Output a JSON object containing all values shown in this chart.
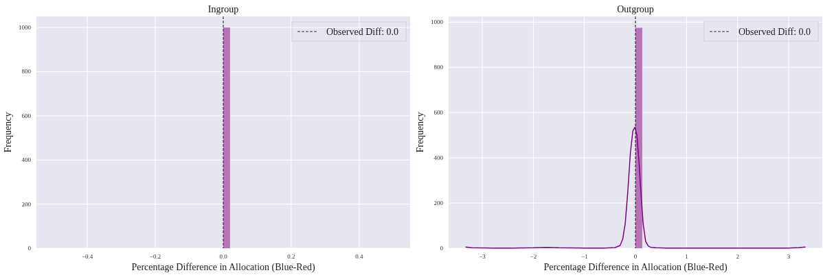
{
  "chart_data": [
    {
      "type": "histogram",
      "title": "Ingroup",
      "xlabel": "Percentage Difference in Allocation (Blue-Red)",
      "ylabel": "Frequency",
      "bins": [
        0,
        0.02
      ],
      "values": [
        1000
      ],
      "color": "#b873b8",
      "xlim": [
        -0.55,
        0.55
      ],
      "xticks": [
        {
          "value": -0.4,
          "label": "−0.4"
        },
        {
          "value": -0.2,
          "label": "−0.2"
        },
        {
          "value": 0,
          "label": "0.0"
        },
        {
          "value": 0.2,
          "label": "0.2"
        },
        {
          "value": 0.4,
          "label": "0.4"
        }
      ],
      "ylim": [
        0,
        1050
      ],
      "yticks": [
        0,
        200,
        400,
        600,
        800,
        1000
      ],
      "grid": true,
      "legend": "top right",
      "ref_lines": [
        {
          "axis": "x",
          "value": 0,
          "label": "Observed Diff: 0.0",
          "color": "#333333",
          "line_style": "dashed"
        }
      ]
    },
    {
      "type": "histogram",
      "title": "Outgroup",
      "xlabel": "Percentage Difference in Allocation (Blue-Red)",
      "ylabel": "Frequency",
      "bins": [
        0,
        0.133
      ],
      "values": [
        975
      ],
      "color": "#b873b8",
      "series": [
        {
          "type": "line",
          "color": "#800080",
          "x": [
            -3.33,
            -3.2,
            -2.8,
            -2.4,
            -2.0,
            -1.75,
            -1.5,
            -1.0,
            -0.6,
            -0.4,
            -0.3,
            -0.25,
            -0.2,
            -0.15,
            -0.1,
            -0.05,
            -0.01,
            0.03,
            0.07,
            0.1,
            0.15,
            0.2,
            0.25,
            0.3,
            0.4,
            0.6,
            1.0,
            2.0,
            3.0,
            3.2,
            3.33
          ],
          "values": [
            5,
            2,
            1,
            1,
            2,
            4,
            2,
            1,
            1,
            3,
            12,
            40,
            110,
            250,
            420,
            520,
            535,
            500,
            380,
            270,
            110,
            30,
            10,
            4,
            2,
            1,
            1,
            1,
            1,
            3,
            5
          ]
        }
      ],
      "xlim": [
        -3.66,
        3.66
      ],
      "xticks": [
        {
          "value": -3,
          "label": "−3"
        },
        {
          "value": -2,
          "label": "−2"
        },
        {
          "value": -1,
          "label": "−1"
        },
        0,
        1,
        2,
        3
      ],
      "ylim": [
        0,
        1025
      ],
      "yticks": [
        0,
        200,
        400,
        600,
        800,
        1000
      ],
      "grid": true,
      "legend": "top right",
      "ref_lines": [
        {
          "axis": "x",
          "value": 0,
          "label": "Observed Diff: 0.0",
          "color": "#333333",
          "line_style": "dashed"
        }
      ]
    }
  ]
}
